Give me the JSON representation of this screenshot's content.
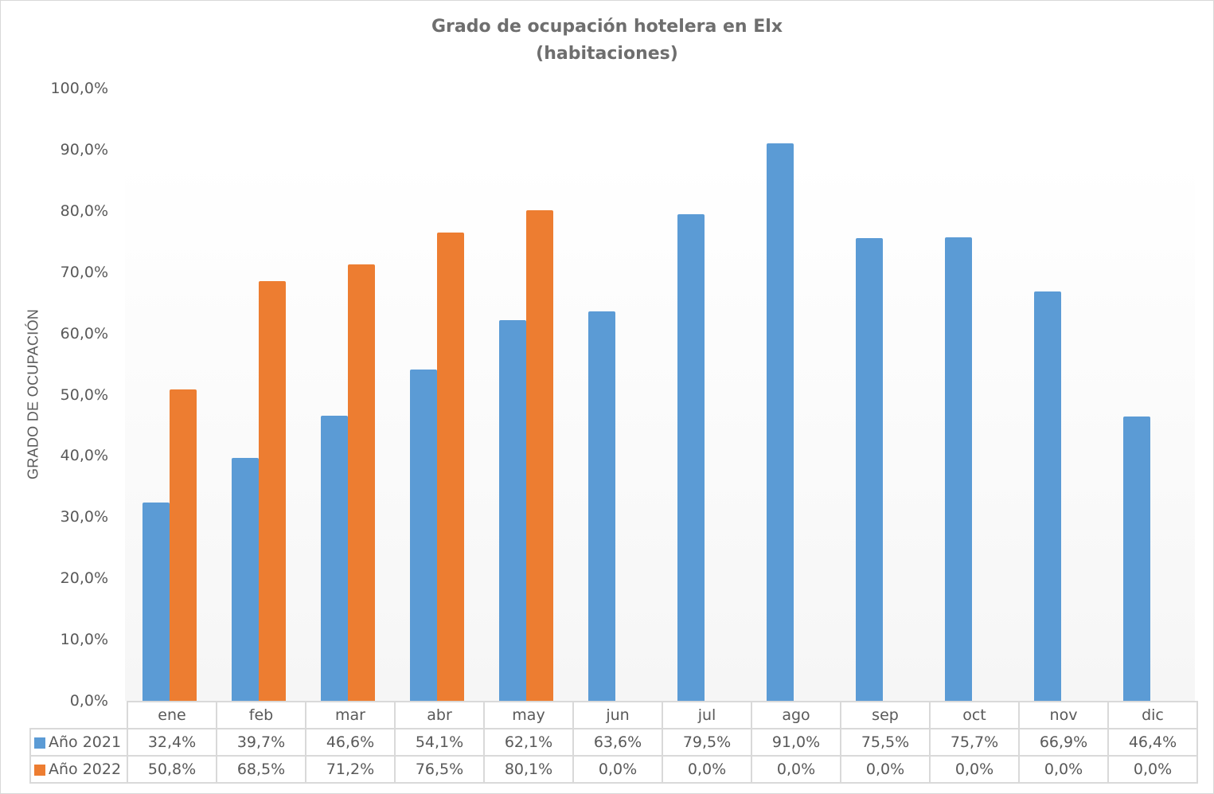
{
  "chart_data": {
    "type": "bar",
    "title": "Grado de ocupación hotelera en Elx",
    "subtitle": "(habitaciones)",
    "xlabel": "",
    "ylabel": "GRADO DE OCUPACIÓN",
    "ylim": [
      0,
      100
    ],
    "yticks": [
      "0,0%",
      "10,0%",
      "20,0%",
      "30,0%",
      "40,0%",
      "50,0%",
      "60,0%",
      "70,0%",
      "80,0%",
      "90,0%",
      "100,0%"
    ],
    "grid": false,
    "legend_position": "data-table",
    "categories": [
      "ene",
      "feb",
      "mar",
      "abr",
      "may",
      "jun",
      "jul",
      "ago",
      "sep",
      "oct",
      "nov",
      "dic"
    ],
    "series": [
      {
        "name": "Año 2021",
        "color": "#5b9bd5",
        "values": [
          32.4,
          39.7,
          46.6,
          54.1,
          62.1,
          63.6,
          79.5,
          91.0,
          75.5,
          75.7,
          66.9,
          46.4
        ],
        "labels": [
          "32,4%",
          "39,7%",
          "46,6%",
          "54,1%",
          "62,1%",
          "63,6%",
          "79,5%",
          "91,0%",
          "75,5%",
          "75,7%",
          "66,9%",
          "46,4%"
        ]
      },
      {
        "name": "Año 2022",
        "color": "#ed7d31",
        "values": [
          50.8,
          68.5,
          71.2,
          76.5,
          80.1,
          0.0,
          0.0,
          0.0,
          0.0,
          0.0,
          0.0,
          0.0
        ],
        "labels": [
          "50,8%",
          "68,5%",
          "71,2%",
          "76,5%",
          "80,1%",
          "0,0%",
          "0,0%",
          "0,0%",
          "0,0%",
          "0,0%",
          "0,0%",
          "0,0%"
        ]
      }
    ]
  }
}
